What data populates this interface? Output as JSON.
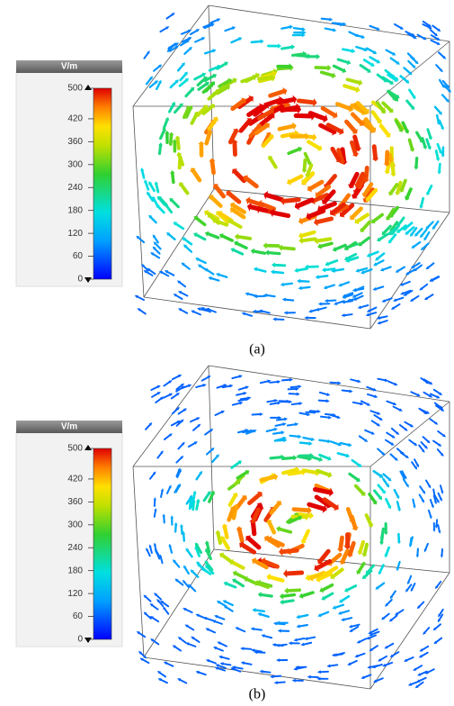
{
  "panels": [
    {
      "colorbar": {
        "unit": "V/m",
        "range": [
          0,
          500
        ],
        "ticks": [
          0,
          60,
          120,
          180,
          240,
          300,
          360,
          420,
          500
        ]
      },
      "caption": "(a)"
    },
    {
      "colorbar": {
        "unit": "V/m",
        "range": [
          0,
          500
        ],
        "ticks": [
          0,
          60,
          120,
          180,
          240,
          300,
          360,
          420,
          500
        ]
      },
      "caption": "(b)"
    }
  ]
}
